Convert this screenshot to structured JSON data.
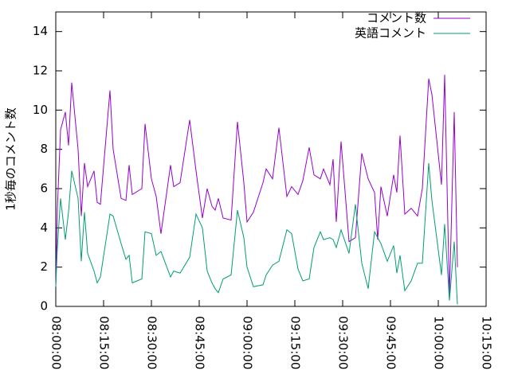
{
  "chart_data": {
    "type": "line",
    "y_label": "1秒毎のコメント数",
    "x": [
      "08:00:00",
      "08:00:30",
      "08:01:30",
      "08:03:00",
      "08:04:00",
      "08:05:00",
      "08:07:00",
      "08:08:00",
      "08:09:00",
      "08:10:00",
      "08:12:00",
      "08:13:00",
      "08:14:00",
      "08:17:00",
      "08:18:00",
      "08:20:30",
      "08:22:00",
      "08:23:00",
      "08:24:00",
      "08:27:00",
      "08:28:00",
      "08:30:00",
      "08:31:30",
      "08:33:00",
      "08:36:00",
      "08:37:00",
      "08:39:00",
      "08:42:00",
      "08:44:00",
      "08:46:00",
      "08:47:30",
      "08:49:00",
      "08:50:00",
      "08:51:00",
      "08:52:30",
      "08:55:00",
      "08:57:00",
      "08:59:00",
      "09:00:00",
      "09:02:00",
      "09:05:00",
      "09:06:00",
      "09:08:00",
      "09:10:00",
      "09:12:30",
      "09:14:00",
      "09:16:00",
      "09:17:30",
      "09:19:30",
      "09:21:00",
      "09:23:00",
      "09:24:00",
      "09:26:00",
      "09:27:00",
      "09:28:00",
      "09:29:30",
      "09:32:00",
      "09:34:00",
      "09:36:00",
      "09:38:00",
      "09:40:00",
      "09:41:00",
      "09:42:00",
      "09:44:00",
      "09:46:00",
      "09:47:00",
      "09:48:00",
      "09:49:30",
      "09:51:30",
      "09:53:30",
      "09:55:00",
      "09:57:00",
      "09:58:00",
      "10:01:00",
      "10:02:00",
      "10:03:30",
      "10:05:00",
      "10:06:00"
    ],
    "series": [
      {
        "name": "コメント数",
        "color": "#9400d3",
        "values": [
          1,
          5,
          9,
          9.9,
          8.2,
          11.4,
          8,
          4.6,
          7.3,
          6.1,
          6.9,
          5.3,
          5.2,
          11,
          8,
          5.5,
          5.4,
          7.2,
          5.7,
          6,
          9.3,
          6.5,
          5.6,
          3.7,
          7.2,
          6.1,
          6.3,
          9.5,
          6.9,
          4.5,
          6,
          5.1,
          4.9,
          5.5,
          4.5,
          4.4,
          9.4,
          6.3,
          4.3,
          4.8,
          6.3,
          7,
          6.5,
          9.1,
          5.6,
          6.1,
          5.7,
          6.4,
          8.1,
          6.7,
          6.5,
          7,
          6.2,
          7.5,
          4.3,
          8.4,
          3.3,
          3.5,
          7.8,
          6.5,
          5.8,
          3.4,
          6.1,
          4.6,
          6.7,
          5.8,
          8.7,
          4.7,
          5,
          4.6,
          6,
          11.6,
          10.8,
          6.2,
          11.8,
          0.5,
          9.9,
          2
        ]
      },
      {
        "name": "英語コメント",
        "color": "#009e73",
        "values": [
          1,
          3,
          5.5,
          3.4,
          4.8,
          6.9,
          5.5,
          2.3,
          4.8,
          2.7,
          1.8,
          1.2,
          1.5,
          4.7,
          4.6,
          3.2,
          2.4,
          2.6,
          1.2,
          1.4,
          3.8,
          3.7,
          2.6,
          2.8,
          1.5,
          1.8,
          1.7,
          2.5,
          4.7,
          4,
          1.8,
          1.2,
          0.9,
          0.7,
          1.4,
          1.6,
          4.9,
          3.5,
          2,
          1,
          1.1,
          1.6,
          2.1,
          2.3,
          3.9,
          3.7,
          1.9,
          1.3,
          1.4,
          3,
          3.8,
          3.4,
          3.5,
          3.4,
          3,
          3.9,
          2.7,
          5.2,
          2.2,
          0.9,
          3.8,
          3.5,
          3.2,
          2.3,
          3.1,
          1.7,
          2.6,
          0.8,
          1.3,
          2.2,
          2.2,
          7.3,
          5.4,
          1.6,
          4.2,
          0.3,
          3.3,
          0.1
        ]
      }
    ],
    "xlim": [
      "08:00:00",
      "10:15:00"
    ],
    "xticks": [
      "08:00:00",
      "08:15:00",
      "08:30:00",
      "08:45:00",
      "09:00:00",
      "09:15:00",
      "09:30:00",
      "09:45:00",
      "10:00:00",
      "10:15:00"
    ],
    "ylim": [
      0,
      15
    ],
    "yticks": [
      0,
      2,
      4,
      6,
      8,
      10,
      12,
      14
    ],
    "legend": "top-right"
  }
}
